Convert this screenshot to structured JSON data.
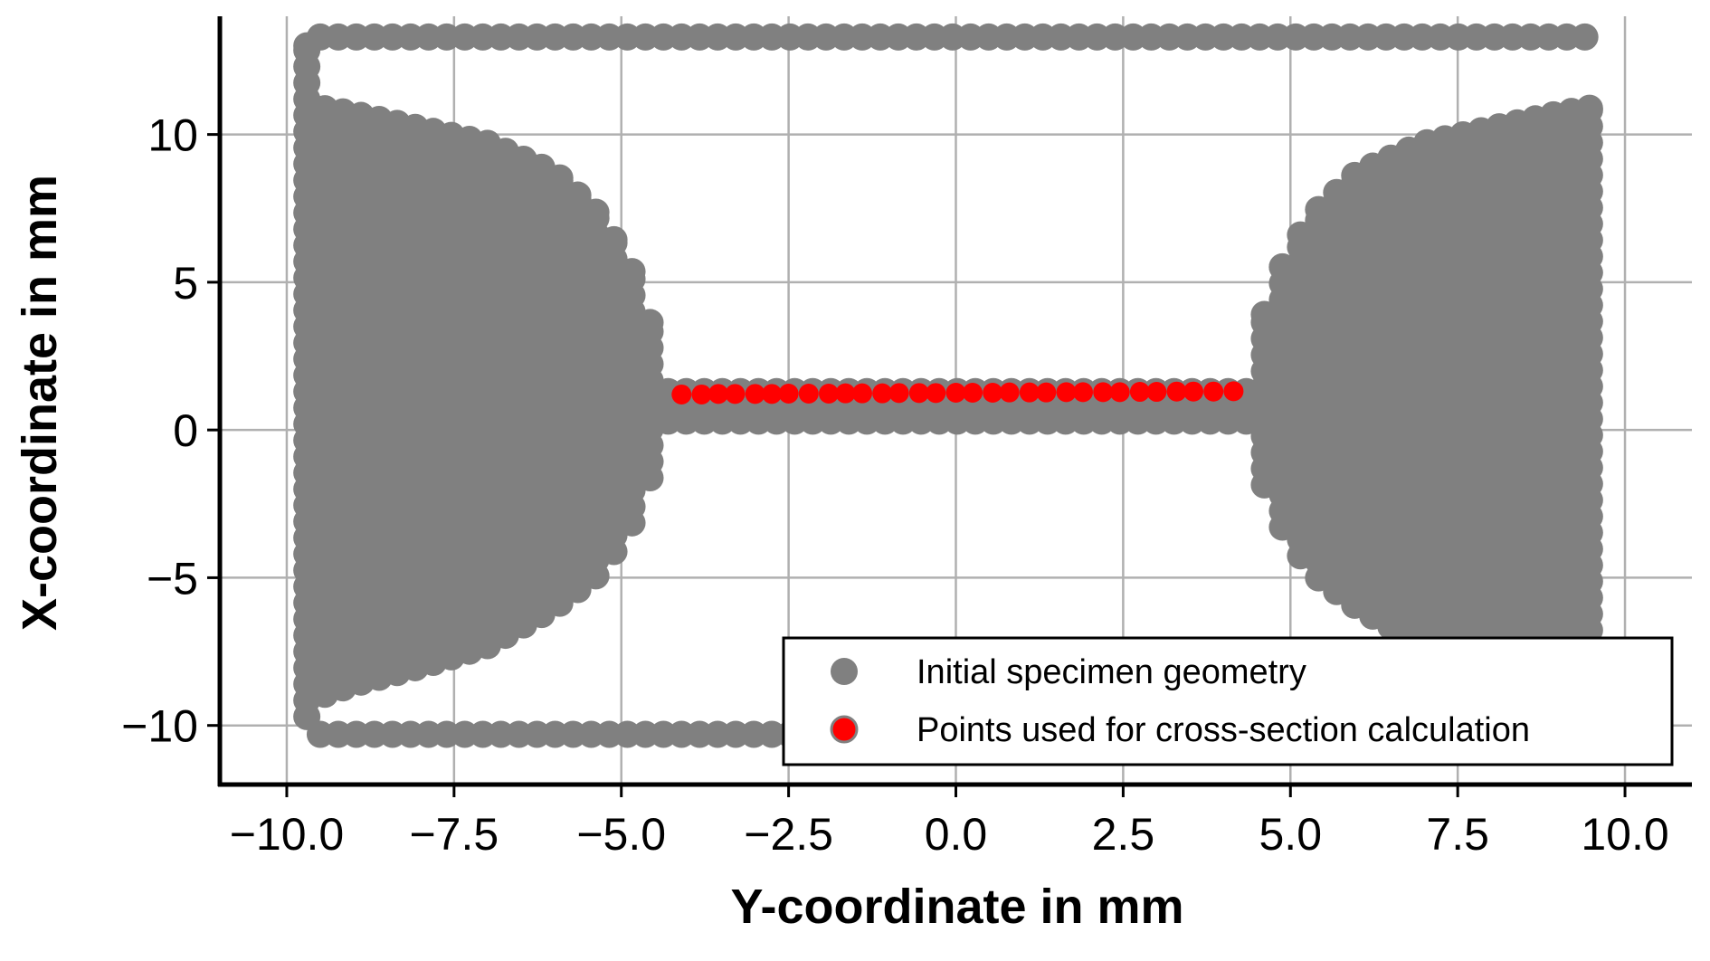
{
  "chart_data": {
    "type": "scatter",
    "title": "",
    "xlabel": "Y-coordinate in mm",
    "ylabel": "X-coordinate in mm",
    "xlim": [
      -11.0,
      11.0
    ],
    "ylim": [
      -12.0,
      14.0
    ],
    "xticks": [
      -10.0,
      -7.5,
      -5.0,
      -2.5,
      0.0,
      2.5,
      5.0,
      7.5,
      10.0
    ],
    "xtick_labels": [
      "−10.0",
      "−7.5",
      "−5.0",
      "−2.5",
      "0.0",
      "2.5",
      "5.0",
      "7.5",
      "10.0"
    ],
    "yticks": [
      -10,
      -5,
      0,
      5,
      10
    ],
    "ytick_labels": [
      "−10",
      "−5",
      "0",
      "5",
      "10"
    ],
    "grid": true,
    "legend_position": "lower-right",
    "series": [
      {
        "name": "Initial specimen geometry",
        "color": "#808080",
        "marker": "circle",
        "outline_top_y": 13.3,
        "outline_bottom_y": -10.3,
        "outline": [
          {
            "x": -9.7,
            "y_top": 13.0,
            "y_bottom": -9.7
          },
          {
            "x": -9.7,
            "y_top": 11.2,
            "y_bottom": -10.2
          },
          {
            "x": -9.5,
            "y_top": 10.9,
            "y_bottom": -9.0
          },
          {
            "x": -9.0,
            "y_top": 10.7,
            "y_bottom": -8.6
          },
          {
            "x": -8.0,
            "y_top": 10.2,
            "y_bottom": -8.0
          },
          {
            "x": -7.0,
            "y_top": 9.7,
            "y_bottom": -7.3
          },
          {
            "x": -6.0,
            "y_top": 8.7,
            "y_bottom": -6.0
          },
          {
            "x": -5.3,
            "y_top": 7.2,
            "y_bottom": -4.8
          },
          {
            "x": -4.8,
            "y_top": 5.2,
            "y_bottom": -3.0
          },
          {
            "x": -4.55,
            "y_top": 3.5,
            "y_bottom": -1.5
          },
          {
            "x": -4.45,
            "y_top": 1.3,
            "y_bottom": 0.3
          }
        ]
      },
      {
        "name": "Points used for cross-section calculation",
        "color": "#ff0000",
        "marker": "circle",
        "x": [
          -4.1,
          -3.8,
          -3.55,
          -3.3,
          -3.0,
          -2.75,
          -2.5,
          -2.2,
          -1.9,
          -1.65,
          -1.4,
          -1.1,
          -0.85,
          -0.55,
          -0.3,
          0.0,
          0.25,
          0.55,
          0.8,
          1.1,
          1.35,
          1.65,
          1.9,
          2.2,
          2.45,
          2.75,
          3.0,
          3.3,
          3.55,
          3.85,
          4.15
        ],
        "y": [
          1.2,
          1.2,
          1.22,
          1.22,
          1.22,
          1.22,
          1.23,
          1.23,
          1.23,
          1.24,
          1.24,
          1.24,
          1.25,
          1.25,
          1.25,
          1.26,
          1.26,
          1.26,
          1.27,
          1.27,
          1.27,
          1.28,
          1.28,
          1.28,
          1.28,
          1.29,
          1.29,
          1.3,
          1.3,
          1.3,
          1.31
        ]
      }
    ]
  }
}
